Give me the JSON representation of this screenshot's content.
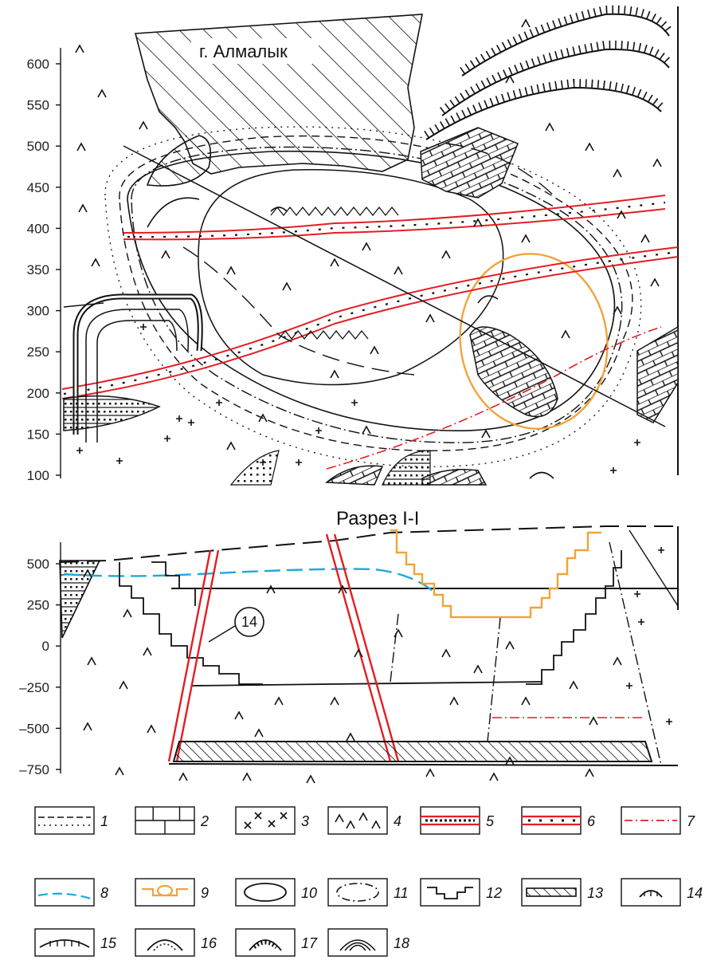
{
  "map": {
    "city_label": "г. Алмалык",
    "y_ticks": [
      "600",
      "550",
      "500",
      "450",
      "400",
      "350",
      "300",
      "250",
      "200",
      "150",
      "100"
    ]
  },
  "section": {
    "title": "Разрез I-I",
    "y_ticks": [
      "500",
      "250",
      "0",
      "–250",
      "–500",
      "–750"
    ],
    "callout": "14"
  },
  "legend": {
    "items": [
      {
        "num": "1",
        "symbol": "dashed-dotted-boundary"
      },
      {
        "num": "2",
        "symbol": "limestone-brick"
      },
      {
        "num": "3",
        "symbol": "cross-pattern"
      },
      {
        "num": "4",
        "symbol": "caret-pattern"
      },
      {
        "num": "5",
        "symbol": "red-double-line-dense"
      },
      {
        "num": "6",
        "symbol": "red-double-line-sparse"
      },
      {
        "num": "7",
        "symbol": "red-dash-dot"
      },
      {
        "num": "8",
        "symbol": "blue-dashed"
      },
      {
        "num": "9",
        "symbol": "orange-pit"
      },
      {
        "num": "10",
        "symbol": "ellipse"
      },
      {
        "num": "11",
        "symbol": "dash-dot-ellipse"
      },
      {
        "num": "12",
        "symbol": "stepped-line"
      },
      {
        "num": "13",
        "symbol": "hatched-band"
      },
      {
        "num": "14",
        "symbol": "small-hachured-arc"
      },
      {
        "num": "15",
        "symbol": "wide-hachured-arc"
      },
      {
        "num": "16",
        "symbol": "double-hachured-arc"
      },
      {
        "num": "17",
        "symbol": "crenellated-arc"
      },
      {
        "num": "18",
        "symbol": "triple-arc"
      }
    ]
  },
  "colors": {
    "ink": "#111111",
    "red": "#e31e24",
    "orange": "#f2a33a",
    "blue": "#1ea9d6"
  }
}
